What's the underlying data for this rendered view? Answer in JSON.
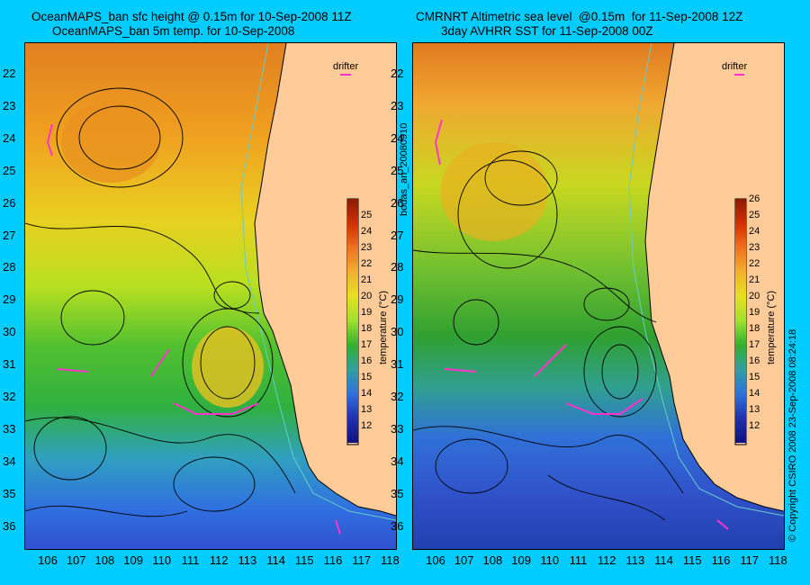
{
  "left": {
    "title1": "OceanMAPS_ban sfc height @ 0.15m for 10-Sep-2008 11Z",
    "title2": "OceanMAPS_ban 5m temp. for 10-Sep-2008"
  },
  "right": {
    "title1": "CMRNRT Altimetric sea level  @0.15m  for 11-Sep-2008 12Z",
    "title2": "3day AVHRR SST for 11-Sep-2008 00Z"
  },
  "lat_labels": [
    "22",
    "23",
    "24",
    "25",
    "26",
    "27",
    "28",
    "29",
    "30",
    "31",
    "32",
    "33",
    "34",
    "35",
    "36"
  ],
  "lon_labels": [
    "106",
    "107",
    "108",
    "109",
    "110",
    "111",
    "112",
    "113",
    "114",
    "115",
    "116",
    "117",
    "118"
  ],
  "drifter_label": "drifter",
  "left_colorbar": {
    "ticks": [
      "25",
      "24",
      "23",
      "22",
      "21",
      "20",
      "19",
      "18",
      "17",
      "16",
      "15",
      "14",
      "13",
      "12"
    ],
    "title": "temperature (°C)"
  },
  "right_colorbar": {
    "ticks": [
      "26",
      "25",
      "24",
      "23",
      "22",
      "21",
      "20",
      "19",
      "18",
      "17",
      "16",
      "15",
      "14",
      "13",
      "12"
    ],
    "title": "temperature (°C)"
  },
  "side_text_left": "bodas_an_20080910",
  "side_text_right": "© Copyright CSIRO 2008  23-Sep-2008 08:24:18",
  "colors": {
    "background": "#00ccff",
    "land": "#ffcc99",
    "contour": "#000000",
    "coast": "#66cccc",
    "drifter": "#ff33cc"
  }
}
